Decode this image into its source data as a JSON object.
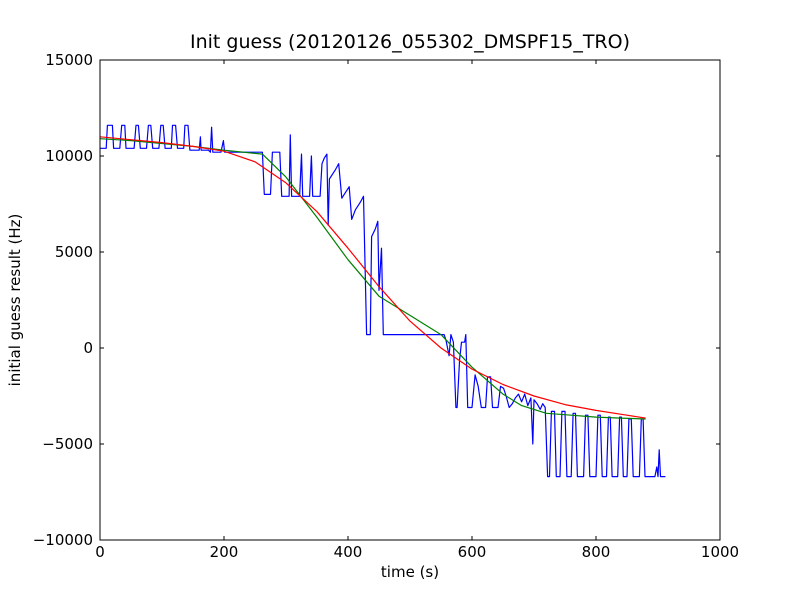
{
  "chart_data": {
    "type": "line",
    "title": "Init guess (20120126_055302_DMSPF15_TRO)",
    "xlabel": "time (s)",
    "ylabel": "initial guess result (Hz)",
    "xlim": [
      0,
      1000
    ],
    "ylim": [
      -10000,
      15000
    ],
    "x_ticks": [
      0,
      200,
      400,
      600,
      800,
      1000
    ],
    "y_ticks": [
      -10000,
      -5000,
      0,
      5000,
      10000,
      15000
    ],
    "x_tick_labels": [
      "0",
      "200",
      "400",
      "600",
      "800",
      "1000"
    ],
    "y_tick_labels": [
      "−10000",
      "−5000",
      "0",
      "5000",
      "10000",
      "15000"
    ],
    "grid": false,
    "legend": "none",
    "series": [
      {
        "color": "#0000ff",
        "points": [
          [
            0,
            10400
          ],
          [
            10,
            10400
          ],
          [
            12,
            11600
          ],
          [
            20,
            11600
          ],
          [
            22,
            10400
          ],
          [
            32,
            10400
          ],
          [
            35,
            11600
          ],
          [
            40,
            11600
          ],
          [
            42,
            10400
          ],
          [
            55,
            10400
          ],
          [
            58,
            11600
          ],
          [
            62,
            11600
          ],
          [
            65,
            10400
          ],
          [
            75,
            10400
          ],
          [
            78,
            11600
          ],
          [
            82,
            11600
          ],
          [
            85,
            10400
          ],
          [
            95,
            10400
          ],
          [
            98,
            11600
          ],
          [
            102,
            11600
          ],
          [
            105,
            10400
          ],
          [
            115,
            10400
          ],
          [
            117,
            11600
          ],
          [
            122,
            11600
          ],
          [
            125,
            10400
          ],
          [
            135,
            10400
          ],
          [
            137,
            11600
          ],
          [
            142,
            11600
          ],
          [
            145,
            10300
          ],
          [
            155,
            10300
          ],
          [
            160,
            10300
          ],
          [
            162,
            11000
          ],
          [
            163,
            10300
          ],
          [
            175,
            10300
          ],
          [
            178,
            10200
          ],
          [
            180,
            11500
          ],
          [
            182,
            10200
          ],
          [
            195,
            10200
          ],
          [
            199,
            10800
          ],
          [
            201,
            10200
          ],
          [
            210,
            10200
          ],
          [
            225,
            10200
          ],
          [
            240,
            10200
          ],
          [
            262,
            10200
          ],
          [
            265,
            8000
          ],
          [
            275,
            8000
          ],
          [
            278,
            10200
          ],
          [
            290,
            10200
          ],
          [
            293,
            7900
          ],
          [
            305,
            7900
          ],
          [
            307,
            11100
          ],
          [
            309,
            7900
          ],
          [
            322,
            7900
          ],
          [
            325,
            10100
          ],
          [
            327,
            7900
          ],
          [
            338,
            7900
          ],
          [
            341,
            10000
          ],
          [
            343,
            7900
          ],
          [
            355,
            7900
          ],
          [
            358,
            9600
          ],
          [
            362,
            9900
          ],
          [
            366,
            10100
          ],
          [
            368,
            6400
          ],
          [
            370,
            8800
          ],
          [
            380,
            9300
          ],
          [
            385,
            9600
          ],
          [
            390,
            7800
          ],
          [
            402,
            8400
          ],
          [
            406,
            6700
          ],
          [
            412,
            7200
          ],
          [
            420,
            7600
          ],
          [
            425,
            7900
          ],
          [
            430,
            700
          ],
          [
            436,
            700
          ],
          [
            438,
            5800
          ],
          [
            444,
            6200
          ],
          [
            448,
            6600
          ],
          [
            450,
            3000
          ],
          [
            454,
            5200
          ],
          [
            457,
            700
          ],
          [
            520,
            700
          ],
          [
            540,
            700
          ],
          [
            555,
            700
          ],
          [
            558,
            400
          ],
          [
            563,
            -400
          ],
          [
            566,
            700
          ],
          [
            570,
            300
          ],
          [
            574,
            -3100
          ],
          [
            576,
            -3100
          ],
          [
            580,
            -600
          ],
          [
            583,
            300
          ],
          [
            588,
            300
          ],
          [
            590,
            700
          ],
          [
            593,
            -3100
          ],
          [
            600,
            -3100
          ],
          [
            605,
            -1400
          ],
          [
            610,
            -2000
          ],
          [
            615,
            -3100
          ],
          [
            622,
            -3100
          ],
          [
            625,
            -1500
          ],
          [
            630,
            -1500
          ],
          [
            633,
            -3100
          ],
          [
            642,
            -3100
          ],
          [
            646,
            -2000
          ],
          [
            651,
            -2100
          ],
          [
            655,
            -2500
          ],
          [
            660,
            -3100
          ],
          [
            665,
            -2900
          ],
          [
            670,
            -2600
          ],
          [
            675,
            -2400
          ],
          [
            680,
            -2800
          ],
          [
            685,
            -2400
          ],
          [
            690,
            -3000
          ],
          [
            695,
            -2600
          ],
          [
            698,
            -5000
          ],
          [
            700,
            -2700
          ],
          [
            705,
            -2900
          ],
          [
            710,
            -3200
          ],
          [
            714,
            -2900
          ],
          [
            718,
            -3100
          ],
          [
            722,
            -6700
          ],
          [
            725,
            -6700
          ],
          [
            728,
            -3300
          ],
          [
            733,
            -3300
          ],
          [
            736,
            -6700
          ],
          [
            742,
            -6700
          ],
          [
            745,
            -3300
          ],
          [
            750,
            -3300
          ],
          [
            753,
            -6700
          ],
          [
            760,
            -6700
          ],
          [
            763,
            -3400
          ],
          [
            767,
            -3400
          ],
          [
            770,
            -6700
          ],
          [
            780,
            -6700
          ],
          [
            783,
            -3500
          ],
          [
            787,
            -3500
          ],
          [
            790,
            -6700
          ],
          [
            800,
            -6700
          ],
          [
            803,
            -3500
          ],
          [
            807,
            -3500
          ],
          [
            810,
            -6700
          ],
          [
            817,
            -6700
          ],
          [
            820,
            -3600
          ],
          [
            823,
            -3600
          ],
          [
            826,
            -6700
          ],
          [
            835,
            -6700
          ],
          [
            838,
            -3600
          ],
          [
            841,
            -3600
          ],
          [
            844,
            -6700
          ],
          [
            850,
            -6700
          ],
          [
            853,
            -3700
          ],
          [
            857,
            -3700
          ],
          [
            860,
            -6700
          ],
          [
            870,
            -6700
          ],
          [
            873,
            -3700
          ],
          [
            876,
            -3700
          ],
          [
            879,
            -6700
          ],
          [
            895,
            -6700
          ],
          [
            898,
            -6200
          ],
          [
            900,
            -6700
          ],
          [
            902,
            -5300
          ],
          [
            904,
            -6700
          ],
          [
            912,
            -6700
          ]
        ]
      },
      {
        "color": "#008000",
        "points": [
          [
            0,
            10900
          ],
          [
            50,
            10800
          ],
          [
            150,
            10500
          ],
          [
            200,
            10300
          ],
          [
            262,
            10100
          ],
          [
            300,
            8900
          ],
          [
            350,
            6800
          ],
          [
            400,
            4600
          ],
          [
            450,
            2700
          ],
          [
            500,
            1700
          ],
          [
            550,
            700
          ],
          [
            600,
            -1000
          ],
          [
            650,
            -2400
          ],
          [
            680,
            -3000
          ],
          [
            720,
            -3400
          ],
          [
            760,
            -3500
          ],
          [
            800,
            -3600
          ],
          [
            840,
            -3650
          ],
          [
            880,
            -3700
          ]
        ]
      },
      {
        "color": "#ff0000",
        "points": [
          [
            0,
            11000
          ],
          [
            50,
            10850
          ],
          [
            100,
            10700
          ],
          [
            150,
            10500
          ],
          [
            200,
            10250
          ],
          [
            250,
            9700
          ],
          [
            300,
            8600
          ],
          [
            350,
            7100
          ],
          [
            400,
            5200
          ],
          [
            450,
            3200
          ],
          [
            500,
            1400
          ],
          [
            550,
            0
          ],
          [
            600,
            -1100
          ],
          [
            650,
            -1900
          ],
          [
            700,
            -2500
          ],
          [
            750,
            -2950
          ],
          [
            800,
            -3250
          ],
          [
            850,
            -3500
          ],
          [
            880,
            -3650
          ]
        ]
      }
    ]
  }
}
